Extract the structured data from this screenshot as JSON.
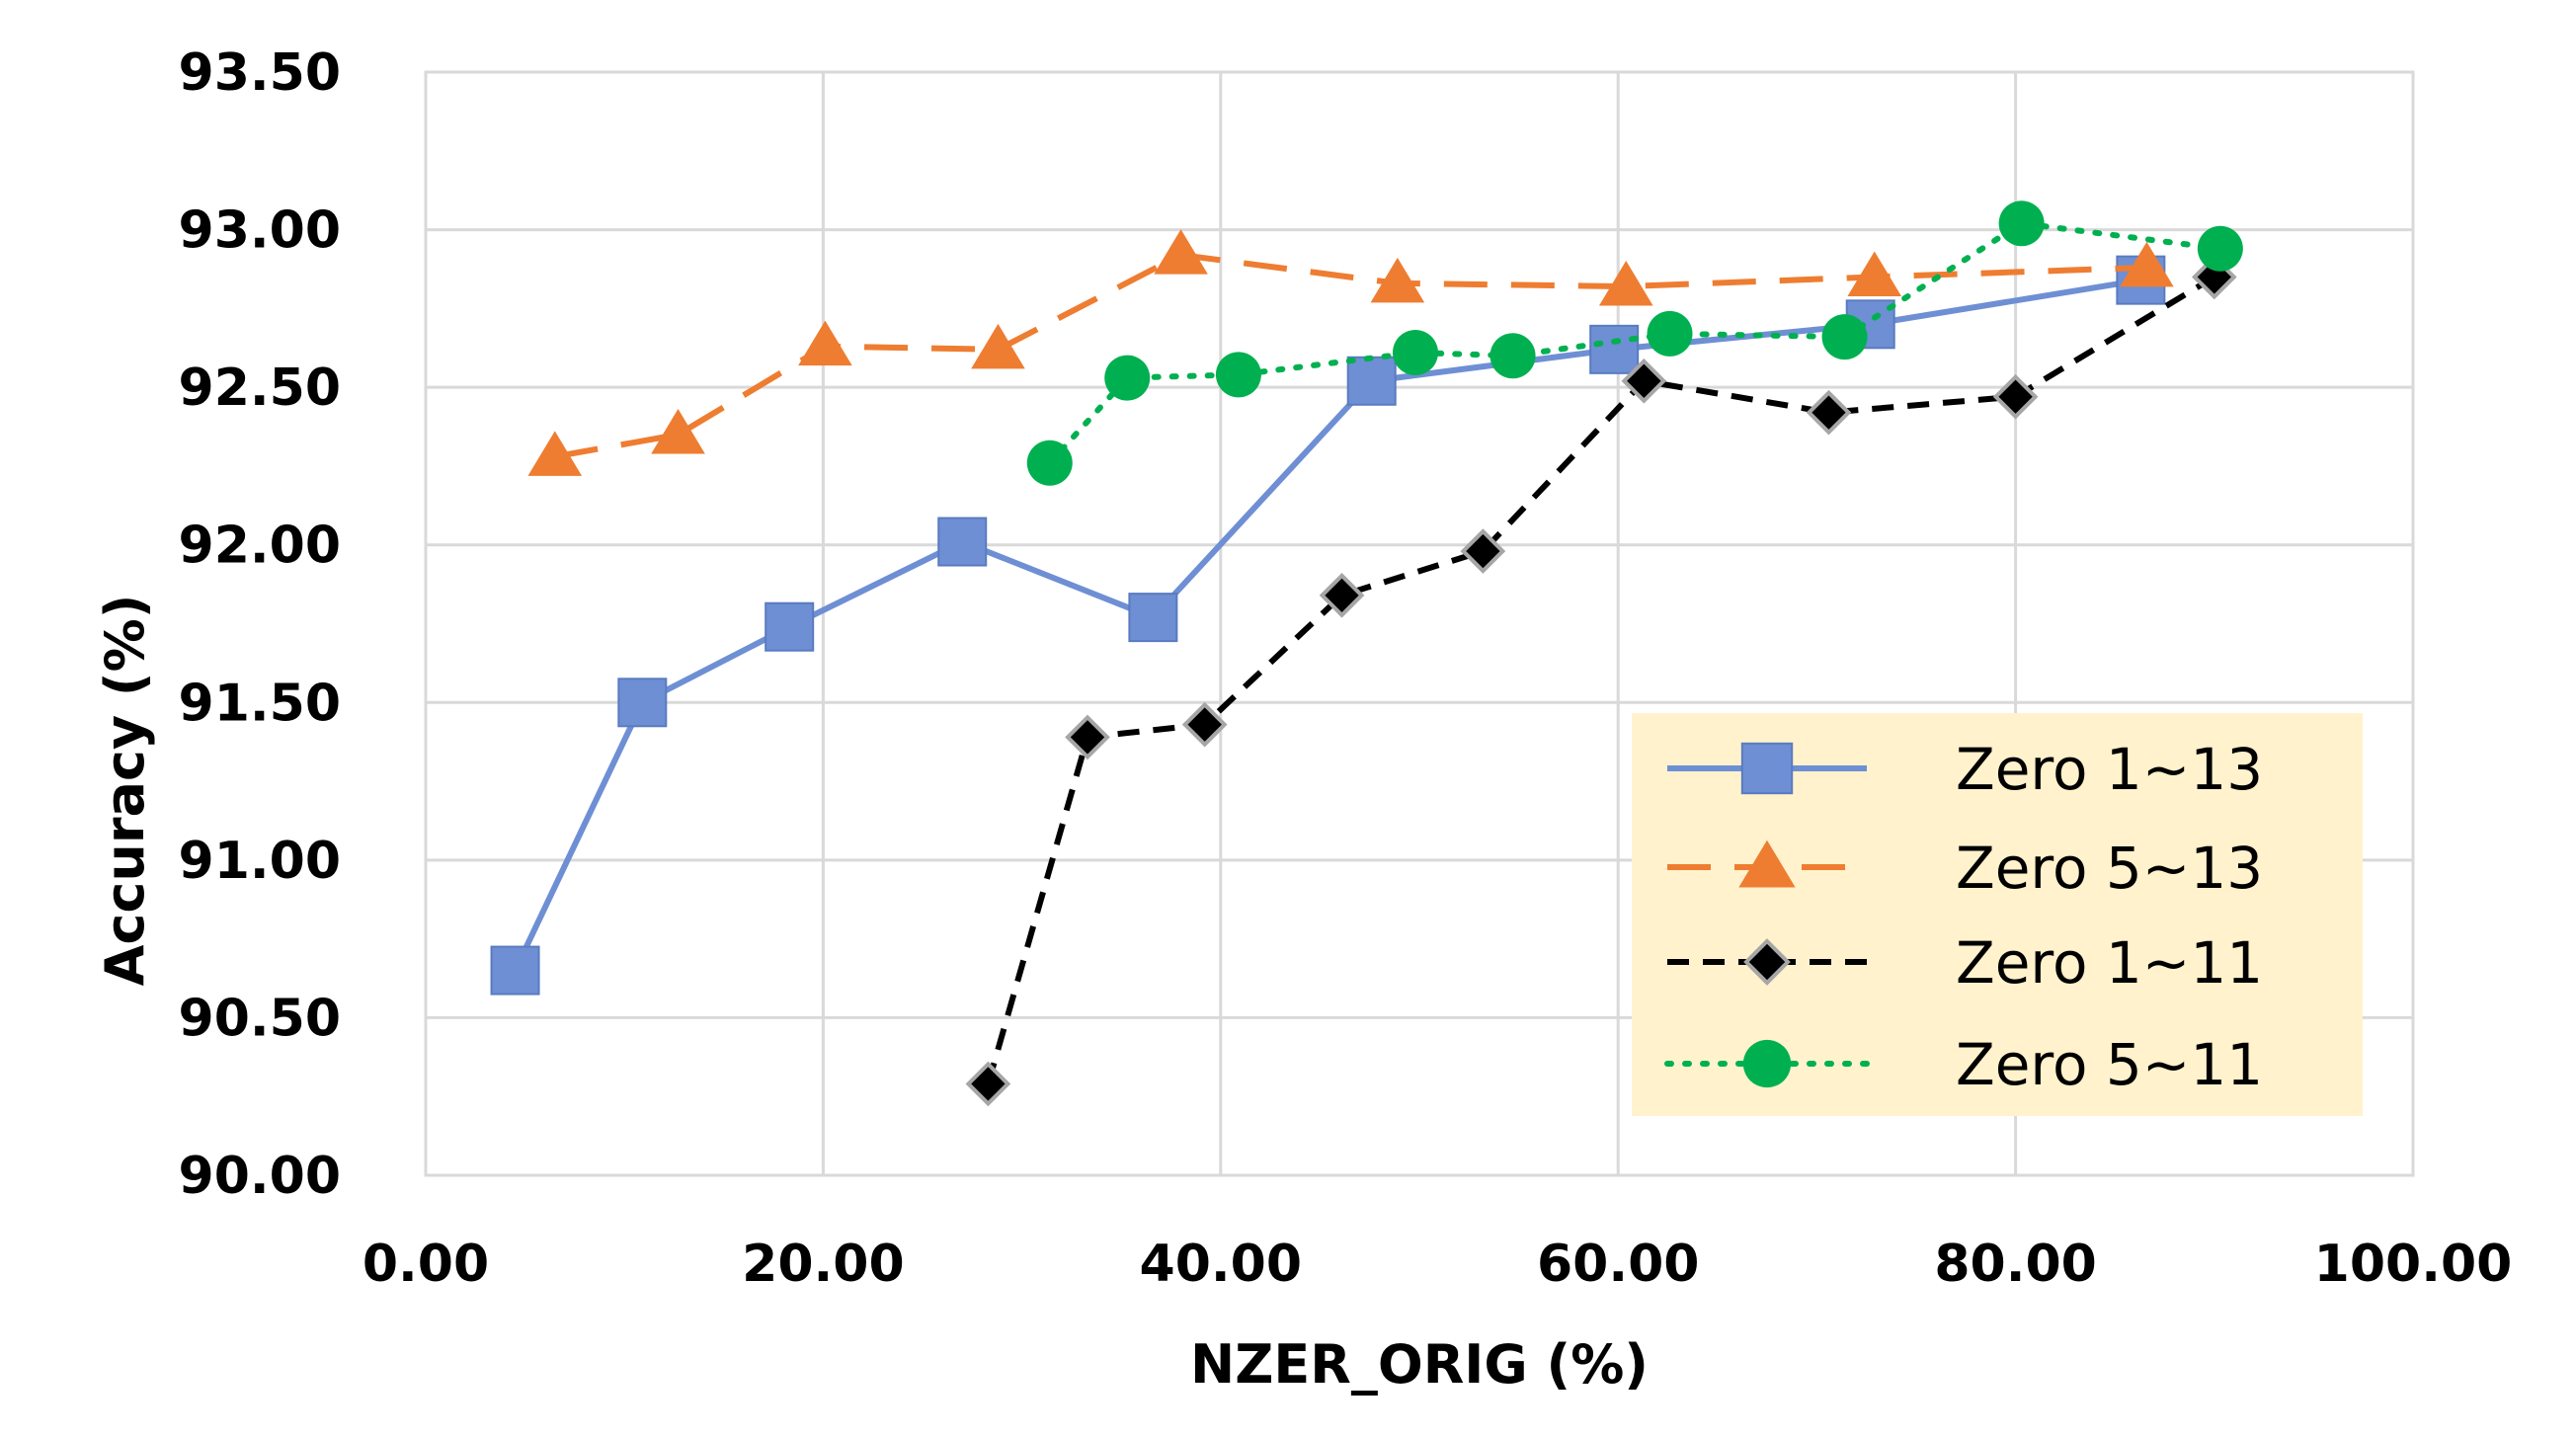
{
  "chart_data": {
    "type": "scatter",
    "title": "",
    "xlabel": "NZER_ORIG (%)",
    "ylabel": "Accuracy (%)",
    "xlim": [
      0,
      100
    ],
    "ylim": [
      90,
      93.5
    ],
    "xticks": [
      0,
      20,
      40,
      60,
      80,
      100
    ],
    "yticks": [
      90,
      90.5,
      91,
      91.5,
      92,
      92.5,
      93,
      93.5
    ],
    "xtick_labels": [
      "0.00",
      "20.00",
      "40.00",
      "60.00",
      "80.00",
      "100.00"
    ],
    "ytick_labels": [
      "90.00",
      "90.50",
      "91.00",
      "91.50",
      "92.00",
      "92.50",
      "93.00",
      "93.50"
    ],
    "grid": true,
    "legend_position": "lower-right",
    "series": [
      {
        "name": "Zero 1~13",
        "color": "#6e8fd4",
        "line": "solid",
        "marker": "square",
        "x": [
          4.5,
          10.9,
          18.3,
          27.0,
          36.6,
          47.6,
          59.8,
          72.7,
          86.3
        ],
        "y": [
          90.65,
          91.5,
          91.74,
          92.01,
          91.77,
          92.52,
          92.62,
          92.7,
          92.84
        ]
      },
      {
        "name": "Zero 5~13",
        "color": "#ee7d31",
        "line": "dashed",
        "marker": "triangle",
        "x": [
          6.5,
          12.7,
          20.1,
          28.8,
          38.0,
          48.9,
          60.4,
          72.9,
          86.6
        ],
        "y": [
          92.28,
          92.35,
          92.63,
          92.62,
          92.92,
          92.83,
          92.82,
          92.85,
          92.88
        ]
      },
      {
        "name": "Zero 1~11",
        "color": "#000000",
        "line": "dashed",
        "marker": "diamond",
        "x": [
          28.3,
          33.3,
          39.2,
          46.1,
          53.2,
          61.3,
          70.6,
          80.0,
          90.0
        ],
        "y": [
          90.29,
          91.39,
          91.43,
          91.84,
          91.98,
          92.52,
          92.42,
          92.47,
          92.85
        ]
      },
      {
        "name": "Zero 5~11",
        "color": "#00b050",
        "line": "dotted",
        "marker": "circle",
        "x": [
          31.4,
          35.3,
          40.9,
          49.8,
          54.7,
          62.6,
          71.4,
          80.3,
          90.3
        ],
        "y": [
          92.26,
          92.53,
          92.54,
          92.61,
          92.6,
          92.67,
          92.66,
          93.02,
          92.94
        ]
      }
    ]
  }
}
